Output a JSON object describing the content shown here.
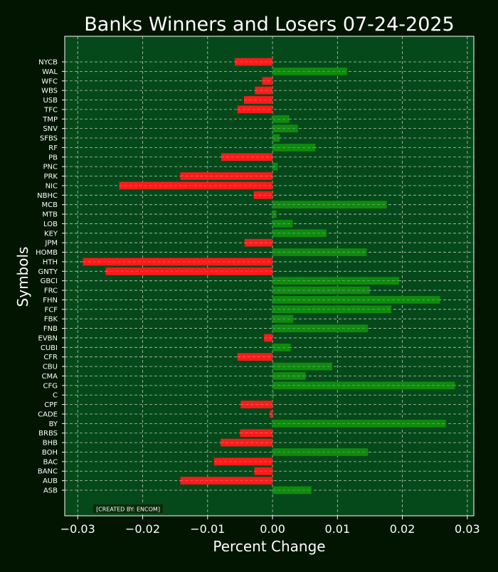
{
  "colors": {
    "background": "#011501",
    "plot_background": "#05491a",
    "gain": "#0f8a0f",
    "loss": "#ff1a1a",
    "text": "#ffffff",
    "grid": "#b8c8b8"
  },
  "watermark": "[CREATED BY: ENCOM]",
  "chart_data": {
    "type": "bar",
    "orientation": "horizontal",
    "title": "Banks Winners and Losers 07-24-2025",
    "xlabel": "Percent Change",
    "ylabel": "Symbols",
    "xlim": [
      -0.032,
      0.031
    ],
    "xticks": [
      -0.03,
      -0.02,
      -0.01,
      0.0,
      0.01,
      0.02,
      0.03
    ],
    "xtick_labels": [
      "−0.03",
      "−0.02",
      "−0.01",
      "0.00",
      "0.01",
      "0.02",
      "0.03"
    ],
    "grid": true,
    "categories": [
      "NYCB",
      "WAL",
      "WFC",
      "WBS",
      "USB",
      "TFC",
      "TMP",
      "SNV",
      "SFBS",
      "RF",
      "PB",
      "PNC",
      "PRK",
      "NIC",
      "NBHC",
      "MCB",
      "MTB",
      "LOB",
      "KEY",
      "JPM",
      "HOMB",
      "HTH",
      "GNTY",
      "GBCI",
      "FRC",
      "FHN",
      "FCF",
      "FBK",
      "FNB",
      "EVBN",
      "CUBI",
      "CFR",
      "CBU",
      "CMA",
      "CFG",
      "C",
      "CPF",
      "CADE",
      "BY",
      "BRBS",
      "BHB",
      "BOH",
      "BAC",
      "BANC",
      "AUB",
      "ASB"
    ],
    "values": [
      -0.0058,
      0.0115,
      -0.0016,
      -0.0027,
      -0.0044,
      -0.0054,
      0.0026,
      0.0039,
      0.0011,
      0.0066,
      -0.0079,
      0.0008,
      -0.0142,
      -0.0236,
      -0.0029,
      0.0176,
      0.0006,
      0.0031,
      0.0083,
      -0.0043,
      0.0145,
      -0.0292,
      -0.0257,
      0.0195,
      0.015,
      0.0258,
      0.0183,
      0.0032,
      0.0147,
      -0.0013,
      0.0028,
      -0.0054,
      0.0092,
      0.0051,
      0.0281,
      0.0002,
      -0.0049,
      -0.0004,
      0.0267,
      -0.005,
      -0.008,
      0.0147,
      -0.009,
      -0.0028,
      -0.0142,
      0.006
    ]
  }
}
